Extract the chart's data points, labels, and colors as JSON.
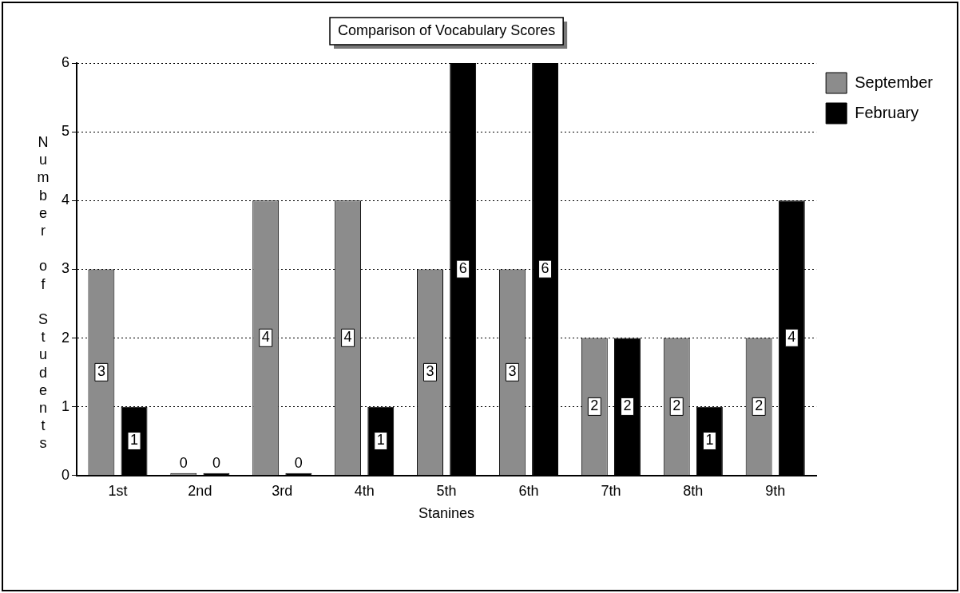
{
  "chart_data": {
    "type": "bar",
    "title": "Comparison of Vocabulary Scores",
    "xlabel": "Stanines",
    "ylabel": "Number of Students",
    "categories": [
      "1st",
      "2nd",
      "3rd",
      "4th",
      "5th",
      "6th",
      "7th",
      "8th",
      "9th"
    ],
    "series": [
      {
        "name": "September",
        "color": "#8c8c8c",
        "values": [
          3,
          0,
          4,
          4,
          3,
          3,
          2,
          2,
          2
        ]
      },
      {
        "name": "February",
        "color": "#000000",
        "values": [
          1,
          0,
          0,
          1,
          6,
          6,
          2,
          1,
          4
        ]
      }
    ],
    "ylim": [
      0,
      6
    ],
    "yticks": [
      0,
      1,
      2,
      3,
      4,
      5,
      6
    ],
    "grid": "y",
    "legend": "top right",
    "data_labels": true
  }
}
